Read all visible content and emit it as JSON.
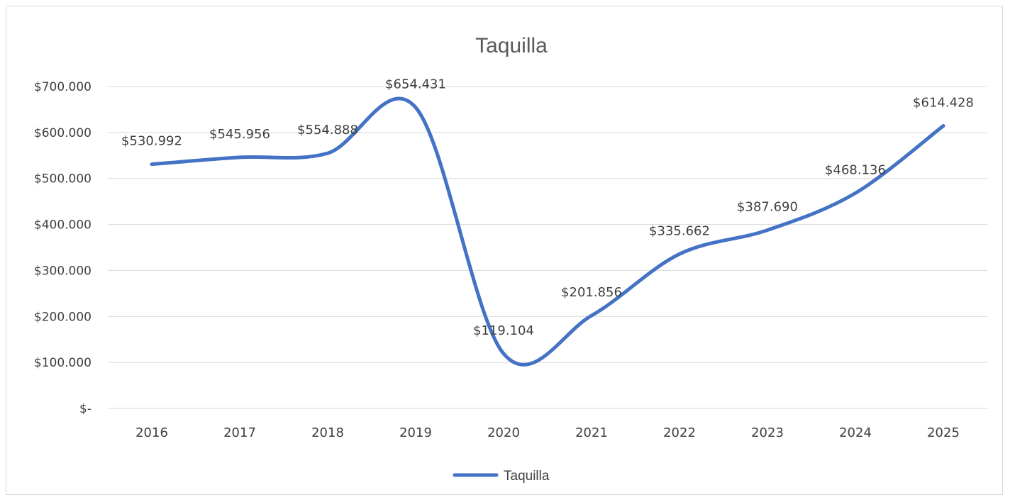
{
  "chart_data": {
    "type": "line",
    "title": "Taquilla",
    "xlabel": "",
    "ylabel": "",
    "categories": [
      "2016",
      "2017",
      "2018",
      "2019",
      "2020",
      "2021",
      "2022",
      "2023",
      "2024",
      "2025"
    ],
    "series": [
      {
        "name": "Taquilla",
        "color": "#4472c4",
        "values": [
          530992,
          545956,
          554888,
          654431,
          119104,
          201856,
          335662,
          387690,
          468136,
          614428
        ],
        "data_labels": [
          "$530.992",
          "$545.956",
          "$554.888",
          "$654.431",
          "$119.104",
          "$201.856",
          "$335.662",
          "$387.690",
          "$468.136",
          "$614.428"
        ]
      }
    ],
    "ylim": [
      0,
      700000
    ],
    "yticks": [
      0,
      100000,
      200000,
      300000,
      400000,
      500000,
      600000,
      700000
    ],
    "ytick_labels": [
      "$-",
      "$100.000",
      "$200.000",
      "$300.000",
      "$400.000",
      "$500.000",
      "$600.000",
      "$700.000"
    ],
    "smooth": true,
    "grid": true,
    "legend_position": "bottom"
  }
}
